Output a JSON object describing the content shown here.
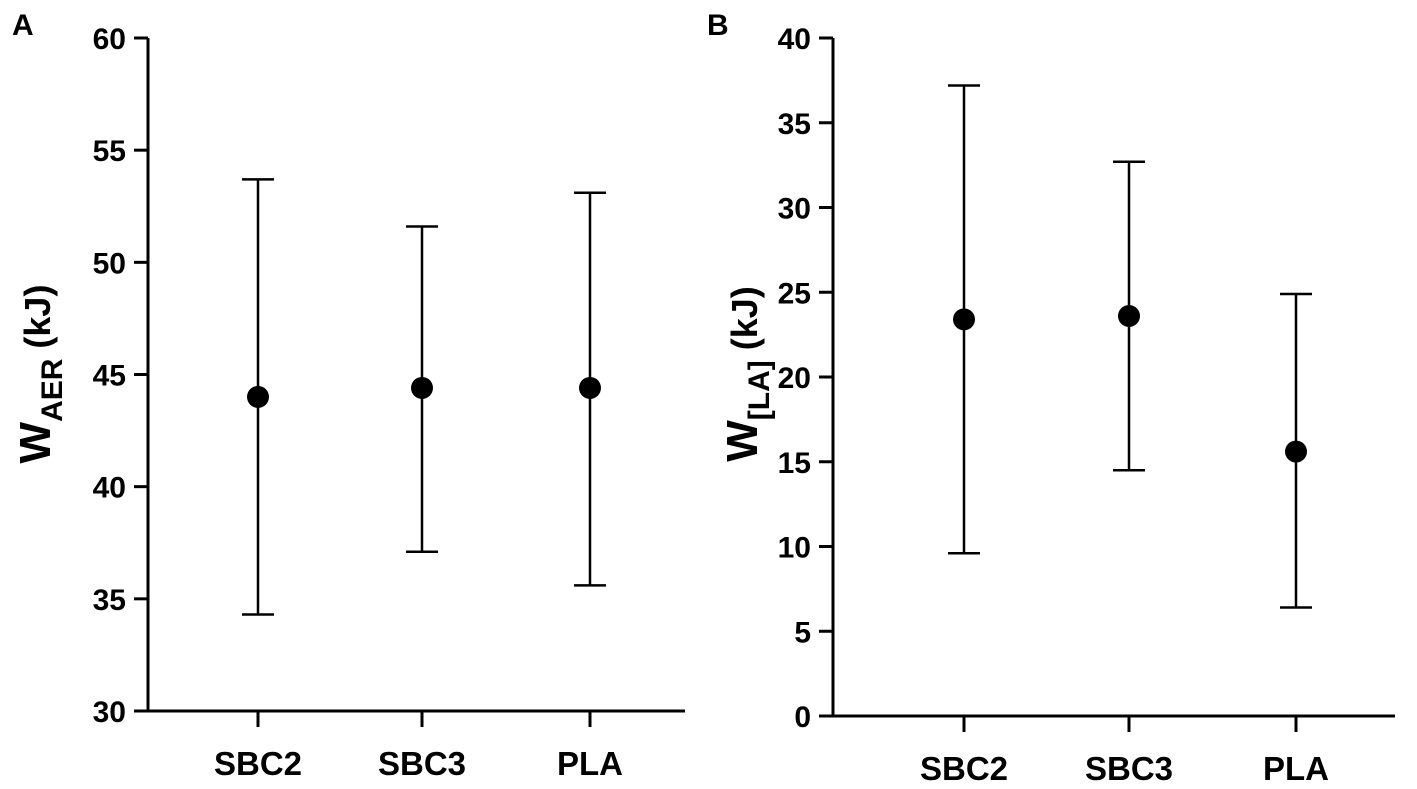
{
  "chart_data": [
    {
      "type": "scatter",
      "panel_label": "A",
      "ylabel": {
        "main": "W",
        "sub": "AER",
        "unit": " (kJ)"
      },
      "ylim": [
        30,
        60
      ],
      "yticks": [
        30,
        35,
        40,
        45,
        50,
        55,
        60
      ],
      "categories": [
        "SBC2",
        "SBC3",
        "PLA"
      ],
      "values": [
        44.0,
        44.4,
        44.4
      ],
      "error_low": [
        34.3,
        37.1,
        35.6
      ],
      "error_high": [
        53.7,
        51.6,
        53.1
      ],
      "grid": false
    },
    {
      "type": "scatter",
      "panel_label": "B",
      "ylabel": {
        "main": "W",
        "sub": "[LA]",
        "unit": " (kJ)"
      },
      "ylim": [
        0,
        40
      ],
      "yticks": [
        0,
        5,
        10,
        15,
        20,
        25,
        30,
        35,
        40
      ],
      "categories": [
        "SBC2",
        "SBC3",
        "PLA"
      ],
      "values": [
        23.4,
        23.6,
        15.6
      ],
      "error_low": [
        9.6,
        14.5,
        6.4
      ],
      "error_high": [
        37.2,
        32.7,
        24.9
      ],
      "grid": false
    }
  ]
}
